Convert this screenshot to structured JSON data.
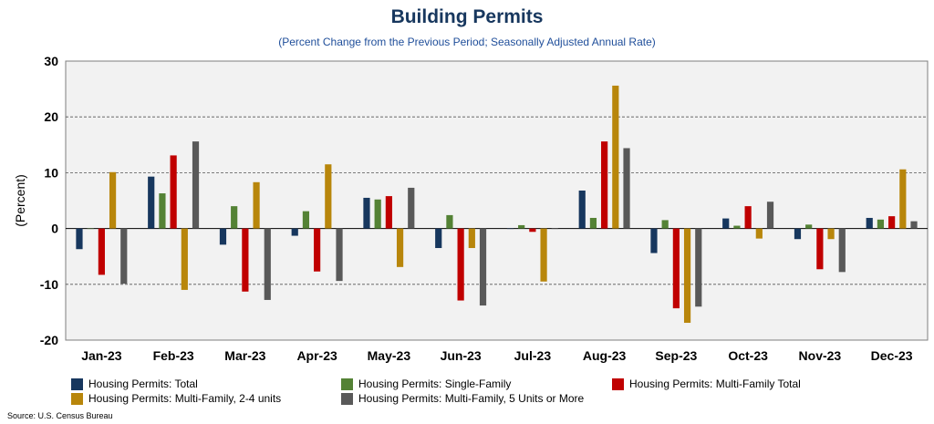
{
  "header": {
    "title": "Building Permits",
    "subtitle": "(Percent Change from the Previous Period; Seasonally Adjusted Annual Rate)"
  },
  "footer": {
    "source": "Source: U.S. Census Bureau"
  },
  "chart_data": {
    "type": "bar",
    "title": "Building Permits",
    "subtitle": "(Percent Change from the Previous Period; Seasonally Adjusted Annual Rate)",
    "ylabel": "(Percent)",
    "xlabel": "",
    "ylim": [
      -20,
      30
    ],
    "yticks": [
      -20,
      -10,
      0,
      10,
      20,
      30
    ],
    "grid": "horizontal dashed",
    "legend_position": "bottom",
    "categories": [
      "Jan-23",
      "Feb-23",
      "Mar-23",
      "Apr-23",
      "May-23",
      "Jun-23",
      "Jul-23",
      "Aug-23",
      "Sep-23",
      "Oct-23",
      "Nov-23",
      "Dec-23"
    ],
    "series": [
      {
        "name": "Housing Permits: Total",
        "color": "#17375e",
        "values": [
          -3.7,
          9.3,
          -2.9,
          -1.3,
          5.5,
          -3.5,
          0.0,
          6.8,
          -4.4,
          1.8,
          -1.9,
          1.9
        ]
      },
      {
        "name": "Housing Permits: Single-Family",
        "color": "#548235",
        "values": [
          0.0,
          6.3,
          4.0,
          3.1,
          5.2,
          2.4,
          0.6,
          1.9,
          1.5,
          0.5,
          0.7,
          1.6
        ]
      },
      {
        "name": "Housing Permits: Multi-Family Total",
        "color": "#c00000",
        "values": [
          -8.3,
          13.1,
          -11.3,
          -7.7,
          5.8,
          -12.9,
          -0.6,
          15.6,
          -14.3,
          4.0,
          -7.3,
          2.2
        ]
      },
      {
        "name": "Housing Permits: Multi-Family, 2-4 units",
        "color": "#b8860b",
        "values": [
          10.1,
          -11.0,
          8.3,
          11.5,
          -6.9,
          -3.5,
          -9.5,
          25.6,
          -16.9,
          -1.8,
          -1.9,
          10.6
        ]
      },
      {
        "name": "Housing Permits: Multi-Family, 5 Units or More",
        "color": "#595959",
        "values": [
          -9.9,
          15.6,
          -12.8,
          -9.4,
          7.3,
          -13.8,
          0.0,
          14.4,
          -14.0,
          4.8,
          -7.8,
          1.3
        ]
      }
    ]
  }
}
